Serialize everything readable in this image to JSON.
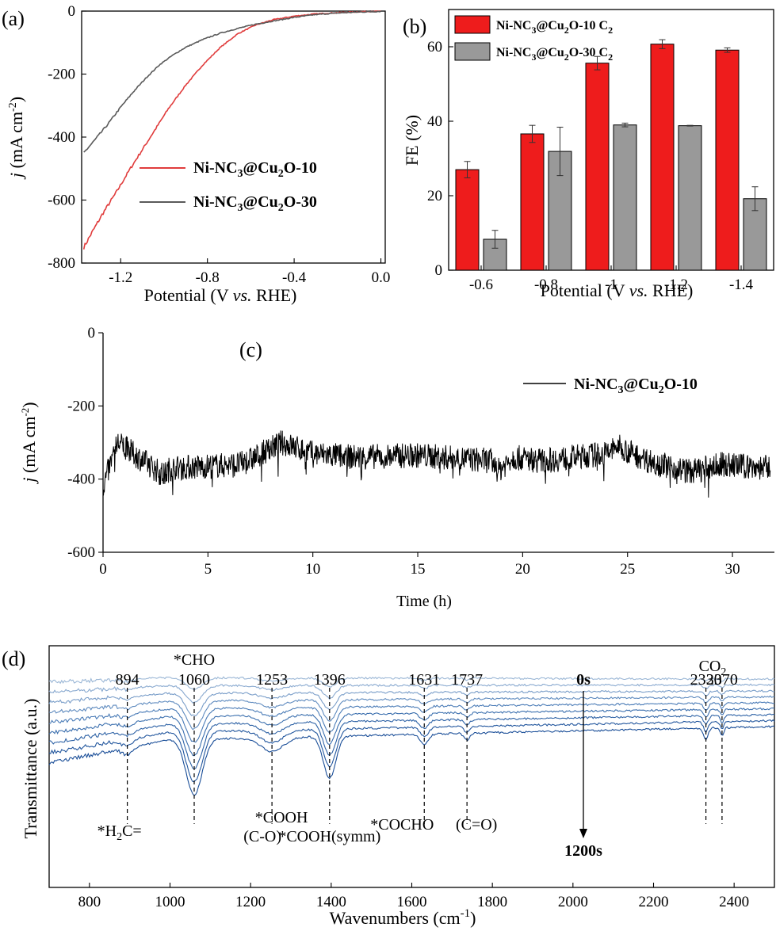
{
  "chart_data": [
    {
      "panel": "(a)",
      "type": "line",
      "xlabel_main": "Potential (V ",
      "xlabel_italic": "vs.",
      "xlabel_tail": " RHE)",
      "ylabel_italic": "j",
      "ylabel_main": " (mA cm",
      "ylabel_sup": "-2",
      "ylabel_tail": ")",
      "xlim": [
        -1.38,
        0.02
      ],
      "ylim": [
        -800,
        0
      ],
      "xticks": [
        -1.2,
        -0.8,
        -0.4,
        0.0
      ],
      "xtick_labels": [
        "-1.2",
        "-0.8",
        "-0.4",
        "0.0"
      ],
      "yticks": [
        0,
        -200,
        -400,
        -600,
        -800
      ],
      "ytick_labels": [
        "0",
        "-200",
        "-400",
        "-600",
        "-800"
      ],
      "series": [
        {
          "name": "Ni-NC3@Cu2O-10",
          "name_parts": [
            "Ni-NC",
            "3",
            "@Cu",
            "2",
            "O-10"
          ],
          "color": "#e03c3c",
          "points": [
            [
              -1.37,
              -750
            ],
            [
              -1.33,
              -700
            ],
            [
              -1.28,
              -640
            ],
            [
              -1.22,
              -575
            ],
            [
              -1.16,
              -505
            ],
            [
              -1.1,
              -440
            ],
            [
              -1.04,
              -375
            ],
            [
              -0.98,
              -310
            ],
            [
              -0.9,
              -235
            ],
            [
              -0.82,
              -170
            ],
            [
              -0.74,
              -115
            ],
            [
              -0.66,
              -72
            ],
            [
              -0.58,
              -45
            ],
            [
              -0.5,
              -28
            ],
            [
              -0.4,
              -16
            ],
            [
              -0.3,
              -9
            ],
            [
              -0.2,
              -5
            ],
            [
              -0.1,
              -2
            ],
            [
              0.0,
              0
            ]
          ]
        },
        {
          "name": "Ni-NC3@Cu2O-30",
          "name_parts": [
            "Ni-NC",
            "3",
            "@Cu",
            "2",
            "O-30"
          ],
          "color": "#5a5a5a",
          "points": [
            [
              -1.37,
              -450
            ],
            [
              -1.32,
              -410
            ],
            [
              -1.26,
              -360
            ],
            [
              -1.2,
              -305
            ],
            [
              -1.14,
              -255
            ],
            [
              -1.08,
              -210
            ],
            [
              -1.02,
              -170
            ],
            [
              -0.96,
              -140
            ],
            [
              -0.9,
              -115
            ],
            [
              -0.82,
              -90
            ],
            [
              -0.74,
              -70
            ],
            [
              -0.66,
              -55
            ],
            [
              -0.58,
              -42
            ],
            [
              -0.5,
              -32
            ],
            [
              -0.4,
              -20
            ],
            [
              -0.3,
              -11
            ],
            [
              -0.2,
              -6
            ],
            [
              -0.1,
              -3
            ],
            [
              0.0,
              -1
            ]
          ]
        }
      ]
    },
    {
      "panel": "(b)",
      "type": "bar",
      "xlabel_main": "Potential (V ",
      "xlabel_italic": "vs.",
      "xlabel_tail": " RHE)",
      "ylabel": "FE (%)",
      "ylim": [
        0,
        70
      ],
      "yticks": [
        0,
        20,
        40,
        60
      ],
      "ytick_labels": [
        "0",
        "20",
        "40",
        "60"
      ],
      "categories": [
        "-0.6",
        "-0.8",
        "-1",
        "-1.2",
        "-1.4"
      ],
      "series": [
        {
          "name": "Ni-NC3@Cu2O-10 C2",
          "name_parts": [
            "Ni-NC",
            "3",
            "@Cu",
            "2",
            "O-10 C",
            "2"
          ],
          "color": "#ee1c1c",
          "values": [
            27.0,
            36.6,
            55.6,
            60.7,
            59.1
          ],
          "errors": [
            2.2,
            2.3,
            1.8,
            1.2,
            0.6
          ]
        },
        {
          "name": "Ni-NC3@Cu2O-30 C2",
          "name_parts": [
            "Ni-NC",
            "3",
            "@Cu",
            "2",
            "O-30 C",
            "2"
          ],
          "color": "#999999",
          "values": [
            8.3,
            31.9,
            39.0,
            38.8,
            19.2
          ],
          "errors": [
            2.4,
            6.5,
            0.5,
            0.1,
            3.2
          ]
        }
      ]
    },
    {
      "panel": "(c)",
      "type": "line",
      "xlabel": "Time (h)",
      "ylabel_italic": "j",
      "ylabel_main": " (mA cm",
      "ylabel_sup": "-2",
      "ylabel_tail": ")",
      "xlim": [
        0,
        32
      ],
      "ylim": [
        -600,
        0
      ],
      "xticks": [
        0,
        5,
        10,
        15,
        20,
        25,
        30
      ],
      "xtick_labels": [
        "0",
        "5",
        "10",
        "15",
        "20",
        "25",
        "30"
      ],
      "yticks": [
        0,
        -200,
        -400,
        -600
      ],
      "ytick_labels": [
        "0",
        "-200",
        "-400",
        "-600"
      ],
      "series": [
        {
          "name": "Ni-NC3@Cu2O-10",
          "name_parts": [
            "Ni-NC",
            "3",
            "@Cu",
            "2",
            "O-10"
          ],
          "color": "#000000",
          "points": [
            [
              0,
              -420
            ],
            [
              0.7,
              -300
            ],
            [
              2.9,
              -390
            ],
            [
              3.2,
              -370
            ],
            [
              6.5,
              -360
            ],
            [
              7.1,
              -345
            ],
            [
              8.5,
              -300
            ],
            [
              10.0,
              -330
            ],
            [
              12.0,
              -340
            ],
            [
              15.0,
              -335
            ],
            [
              18.5,
              -350
            ],
            [
              18.8,
              -380
            ],
            [
              19.5,
              -340
            ],
            [
              21.0,
              -350
            ],
            [
              24.0,
              -330
            ],
            [
              24.5,
              -310
            ],
            [
              26.0,
              -350
            ],
            [
              28.0,
              -380
            ],
            [
              29.5,
              -360
            ],
            [
              31.8,
              -370
            ]
          ]
        }
      ]
    },
    {
      "panel": "(d)",
      "type": "line",
      "xlabel": "Wavenumbers (cm",
      "xlabel_sup": "-1",
      "xlabel_tail": ")",
      "ylabel": "Transmittance (a.u.)",
      "xlim": [
        700,
        2500
      ],
      "xticks": [
        800,
        1000,
        1200,
        1400,
        1600,
        1800,
        2000,
        2200,
        2400
      ],
      "xtick_labels": [
        "800",
        "1000",
        "1200",
        "1400",
        "1600",
        "1800",
        "2000",
        "2200",
        "2400"
      ],
      "time_start": "0s",
      "time_end": "1200s",
      "peaks": [
        {
          "x": 894,
          "top": "894",
          "bottom_parts": [
            "*H",
            "2",
            "C="
          ]
        },
        {
          "x": 1060,
          "top": "1060",
          "top2": "*CHO"
        },
        {
          "x": 1253,
          "top": "1253",
          "bottom": "*COOH",
          "bottom2": "(C-O)"
        },
        {
          "x": 1396,
          "top": "1396",
          "bottom": "*COOH(symm)"
        },
        {
          "x": 1631,
          "top": "1631",
          "bottom": "*COCHO"
        },
        {
          "x": 1737,
          "top": "1737",
          "bottom": "(C=O)"
        },
        {
          "x": 2330,
          "top": "2330"
        },
        {
          "x": 2370,
          "top": "2370"
        }
      ],
      "co2_parts": [
        "CO",
        "2"
      ],
      "spectra_colors": [
        "#9bb7d6",
        "#8aaad0",
        "#7a9ec9",
        "#5f8bbf",
        "#4b7cb7",
        "#3b6fae",
        "#2f63a6",
        "#23579e",
        "#1a4e98"
      ]
    }
  ]
}
